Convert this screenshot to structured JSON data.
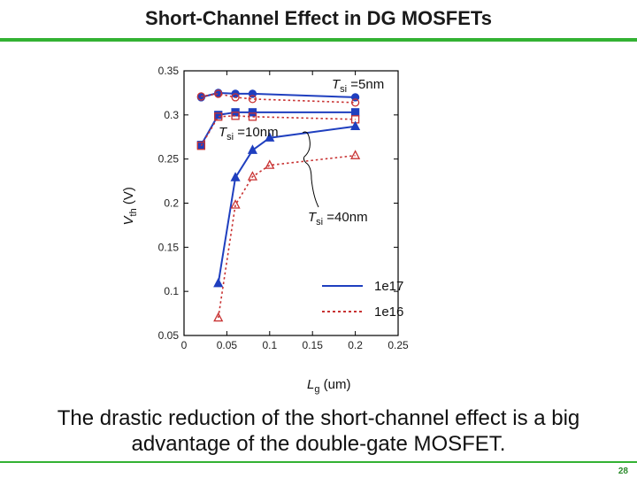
{
  "slide": {
    "title": "Short-Channel Effect in DG MOSFETs",
    "caption": "The drastic reduction of the short-channel effect is a big advantage of the double-gate MOSFET.",
    "page_number": "28",
    "colors": {
      "accent_rule": "#33b233"
    }
  },
  "chart_data": {
    "type": "line",
    "title": "",
    "xlabel": {
      "var": "L",
      "sub": "g",
      "unit": " (um)"
    },
    "ylabel": {
      "var": "V",
      "sub": "th",
      "unit": " (V)"
    },
    "xlim": [
      0,
      0.25
    ],
    "ylim": [
      0.05,
      0.35
    ],
    "x_ticks": [
      "0",
      "0.05",
      "0.1",
      "0.15",
      "0.2",
      "0.25"
    ],
    "x_tick_values": [
      0,
      0.05,
      0.1,
      0.15,
      0.2,
      0.25
    ],
    "y_ticks": [
      "0.05",
      "0.1",
      "0.15",
      "0.2",
      "0.25",
      "0.3",
      "0.35"
    ],
    "y_tick_values": [
      0.05,
      0.1,
      0.15,
      0.2,
      0.25,
      0.3,
      0.35
    ],
    "grid": false,
    "legend": {
      "placement": "bottom-right",
      "entries": [
        {
          "label": "1e17",
          "color": "#1f3fbf",
          "style": "solid"
        },
        {
          "label": "1e16",
          "color": "#c83232",
          "style": "dotted"
        }
      ]
    },
    "annotations": [
      {
        "var": "T",
        "sub": "si",
        "text": " =5nm"
      },
      {
        "var": "T",
        "sub": "si",
        "text": " =10nm"
      },
      {
        "var": "T",
        "sub": "si",
        "text": " =40nm"
      }
    ],
    "series": [
      {
        "group": "Tsi =5nm",
        "doping": "1e17",
        "color": "#1f3fbf",
        "marker": "filled-circle",
        "line": "solid",
        "x": [
          0.02,
          0.04,
          0.06,
          0.08,
          0.2
        ],
        "y": [
          0.32,
          0.325,
          0.324,
          0.324,
          0.32
        ]
      },
      {
        "group": "Tsi =5nm",
        "doping": "1e16",
        "color": "#c83232",
        "marker": "open-circle",
        "line": "dotted",
        "x": [
          0.02,
          0.04,
          0.06,
          0.08,
          0.2
        ],
        "y": [
          0.321,
          0.324,
          0.32,
          0.318,
          0.314
        ]
      },
      {
        "group": "Tsi =10nm",
        "doping": "1e17",
        "color": "#1f3fbf",
        "marker": "filled-square",
        "line": "solid",
        "x": [
          0.02,
          0.04,
          0.06,
          0.08,
          0.2
        ],
        "y": [
          0.266,
          0.3,
          0.303,
          0.303,
          0.303
        ]
      },
      {
        "group": "Tsi =10nm",
        "doping": "1e16",
        "color": "#c83232",
        "marker": "open-square",
        "line": "dotted",
        "x": [
          0.02,
          0.04,
          0.06,
          0.08,
          0.2
        ],
        "y": [
          0.265,
          0.298,
          0.299,
          0.298,
          0.295
        ]
      },
      {
        "group": "Tsi =40nm",
        "doping": "1e17",
        "color": "#1f3fbf",
        "marker": "filled-triangle",
        "line": "solid",
        "x": [
          0.04,
          0.06,
          0.08,
          0.1,
          0.2
        ],
        "y": [
          0.109,
          0.229,
          0.26,
          0.274,
          0.287
        ]
      },
      {
        "group": "Tsi =40nm",
        "doping": "1e16",
        "color": "#c83232",
        "marker": "open-triangle",
        "line": "dotted",
        "x": [
          0.04,
          0.06,
          0.08,
          0.1,
          0.2
        ],
        "y": [
          0.07,
          0.198,
          0.23,
          0.243,
          0.254
        ]
      }
    ]
  }
}
